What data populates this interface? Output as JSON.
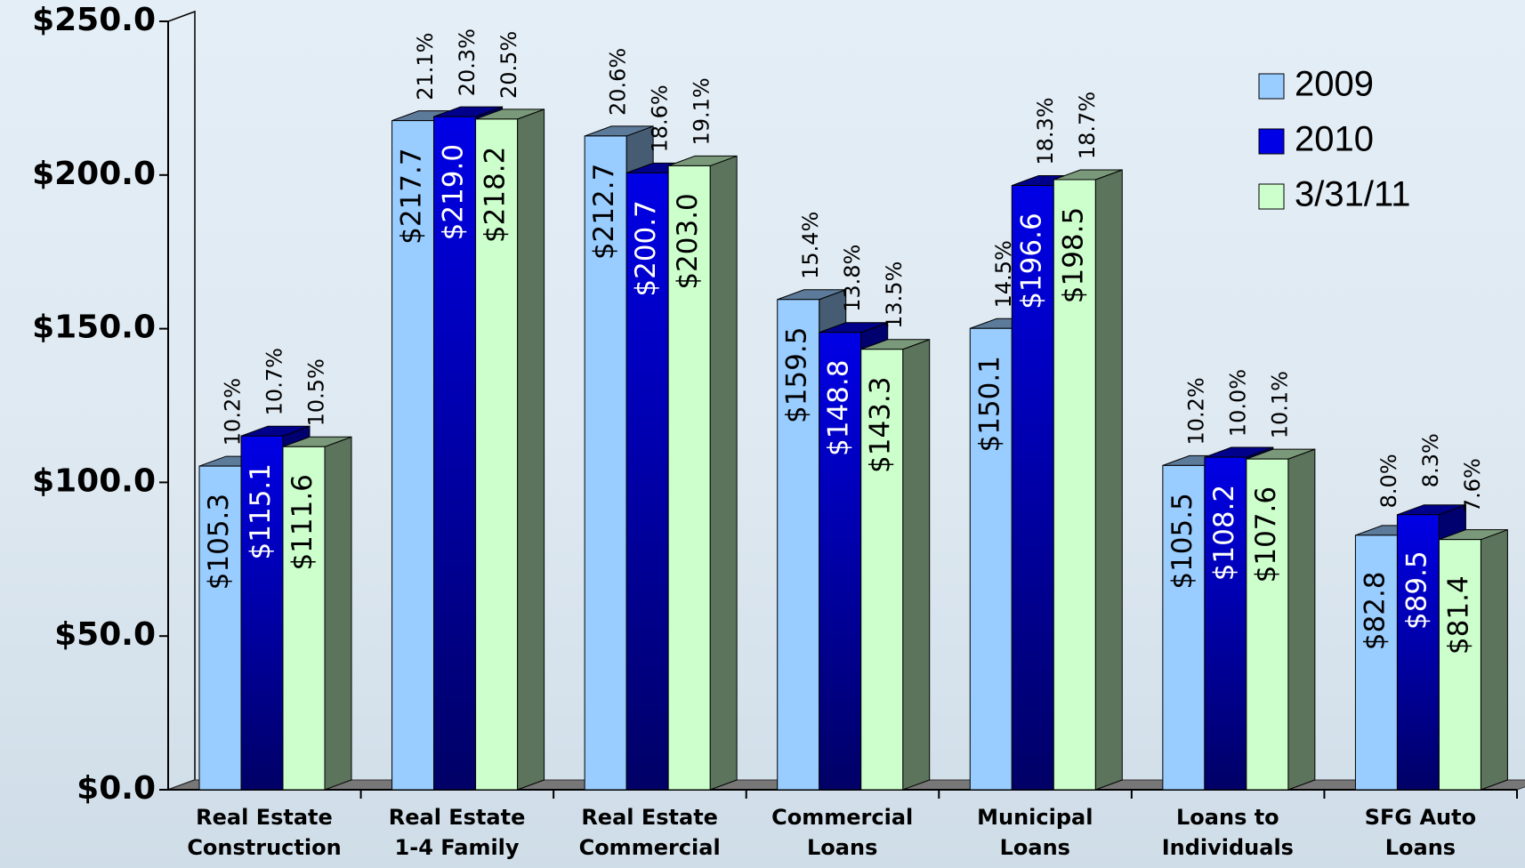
{
  "chart_data": {
    "type": "bar3d",
    "categories": [
      "Real Estate\nConstruction",
      "Real Estate\n1-4 Family",
      "Real Estate\nCommercial",
      "Commercial\nLoans",
      "Municipal\nLoans",
      "Loans to\nIndividuals",
      "SFG Auto\nLoans"
    ],
    "series": [
      {
        "name": "2009",
        "color": "#99ccff",
        "label_color": "#000000",
        "values": [
          105.3,
          217.7,
          212.7,
          159.5,
          150.1,
          105.5,
          82.8
        ],
        "value_labels": [
          "$105.3",
          "$217.7",
          "$212.7",
          "$159.5",
          "$150.1",
          "$105.5",
          "$82.8"
        ],
        "percent_values": [
          10.2,
          21.1,
          20.6,
          15.4,
          14.5,
          10.2,
          8.0
        ],
        "percent_labels": [
          "10.2%",
          "21.1%",
          "20.6%",
          "15.4%",
          "14.5%",
          "10.2%",
          "8.0%"
        ]
      },
      {
        "name": "2010",
        "color": "#0000e6",
        "label_color": "#ffffff",
        "values": [
          115.1,
          219.0,
          200.7,
          148.8,
          196.6,
          108.2,
          89.5
        ],
        "value_labels": [
          "$115.1",
          "$219.0",
          "$200.7",
          "$148.8",
          "$196.6",
          "$108.2",
          "$89.5"
        ],
        "percent_values": [
          10.7,
          20.3,
          18.6,
          13.8,
          18.3,
          10.0,
          8.3
        ],
        "percent_labels": [
          "10.7%",
          "20.3%",
          "18.6%",
          "13.8%",
          "18.3%",
          "10.0%",
          "8.3%"
        ]
      },
      {
        "name": "3/31/11",
        "color": "#ccffcc",
        "label_color": "#000000",
        "values": [
          111.6,
          218.2,
          203.0,
          143.3,
          198.5,
          107.6,
          81.4
        ],
        "value_labels": [
          "$111.6",
          "$218.2",
          "$203.0",
          "$143.3",
          "$198.5",
          "$107.6",
          "$81.4"
        ],
        "percent_values": [
          10.5,
          20.5,
          19.1,
          13.5,
          18.7,
          10.1,
          7.6
        ],
        "percent_labels": [
          "10.5%",
          "20.5%",
          "19.1%",
          "13.5%",
          "18.7%",
          "10.1%",
          "7.6%"
        ]
      }
    ],
    "ylim": [
      0,
      250
    ],
    "yticks": [
      {
        "value": 0,
        "label": "$0.0"
      },
      {
        "value": 50,
        "label": "$50.0"
      },
      {
        "value": 100,
        "label": "$100.0"
      },
      {
        "value": 150,
        "label": "$150.0"
      },
      {
        "value": 200,
        "label": "$200.0"
      },
      {
        "value": 250,
        "label": "$250.0"
      }
    ],
    "legend": "top-right"
  }
}
